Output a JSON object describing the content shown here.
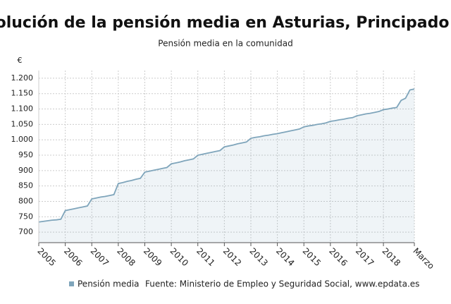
{
  "chart_data": {
    "type": "area",
    "title": "Evolución de la pensión media en Asturias, Principado de",
    "subtitle": "Pensión media en la comunidad",
    "y_axis_label": "€",
    "source": "Fuente: Ministerio de Empleo y Seguridad Social, www.epdata.es",
    "categories": [
      "2005",
      null,
      null,
      null,
      null,
      null,
      "2006",
      null,
      null,
      null,
      null,
      null,
      "2007",
      null,
      null,
      null,
      null,
      null,
      "2008",
      null,
      null,
      null,
      null,
      null,
      "2009",
      null,
      null,
      null,
      null,
      null,
      "2010",
      null,
      null,
      null,
      null,
      null,
      "2011",
      null,
      null,
      null,
      null,
      null,
      "2012",
      null,
      null,
      null,
      null,
      null,
      "2013",
      null,
      null,
      null,
      null,
      null,
      "2014",
      null,
      null,
      null,
      null,
      null,
      "2015",
      null,
      null,
      null,
      null,
      null,
      "2016",
      null,
      null,
      null,
      null,
      null,
      "2017",
      null,
      null,
      null,
      null,
      null,
      "2018",
      null,
      null,
      null,
      null,
      null,
      null,
      "Marzo"
    ],
    "series": [
      {
        "name": "Pensión media",
        "color": "#7fa5bb",
        "values": [
          733,
          735,
          737,
          739,
          740,
          742,
          770,
          773,
          776,
          779,
          782,
          785,
          808,
          811,
          814,
          816,
          819,
          822,
          858,
          861,
          865,
          868,
          872,
          875,
          895,
          898,
          901,
          904,
          907,
          910,
          922,
          925,
          928,
          932,
          935,
          938,
          950,
          953,
          956,
          959,
          962,
          965,
          977,
          980,
          983,
          987,
          990,
          993,
          1005,
          1008,
          1010,
          1013,
          1015,
          1018,
          1020,
          1023,
          1026,
          1029,
          1032,
          1035,
          1042,
          1045,
          1047,
          1050,
          1052,
          1055,
          1060,
          1062,
          1065,
          1067,
          1070,
          1072,
          1078,
          1081,
          1084,
          1086,
          1089,
          1092,
          1098,
          1100,
          1103,
          1105,
          1128,
          1135,
          1162,
          1165
        ]
      }
    ],
    "ylim": [
      666,
      1225
    ],
    "yticks": [
      700,
      750,
      800,
      850,
      900,
      950,
      {
        "value": 1000,
        "label": "1.000"
      },
      {
        "value": 1050,
        "label": "1.050"
      },
      {
        "value": 1100,
        "label": "1.100"
      },
      {
        "value": 1150,
        "label": "1.150"
      },
      {
        "value": 1200,
        "label": "1.200"
      }
    ],
    "grid": true
  }
}
